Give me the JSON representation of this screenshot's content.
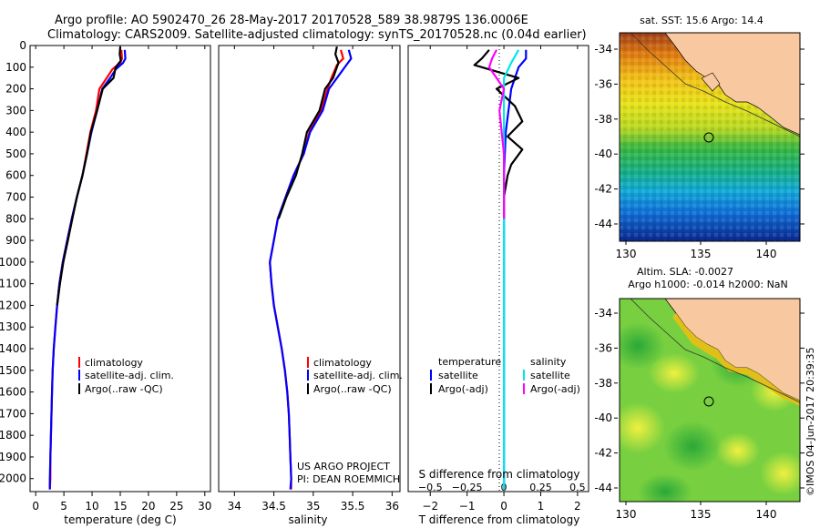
{
  "header": {
    "line1": "Argo profile: AO 5902470_26 28-May-2017 20170528_589 38.9879S 136.0006E",
    "line2": "Climatology: CARS2009. Satellite-adjusted climatology: synTS_20170528.nc (0.04d earlier)"
  },
  "colors": {
    "climatology": "#ff0000",
    "satellite": "#0000ff",
    "argo": "#000000",
    "satellite_salinity": "#00e5ee",
    "argo_salinity": "#ff00ff",
    "land": "#f8c8a0"
  },
  "chart_data": [
    {
      "type": "line",
      "name": "temperature-profile",
      "xlabel": "temperature (deg C)",
      "ylabel": "",
      "xlim": [
        -1,
        31
      ],
      "ylim": [
        2060,
        0
      ],
      "xticks": [
        0,
        5,
        10,
        15,
        20,
        25,
        30
      ],
      "yticks": [
        0,
        100,
        200,
        300,
        400,
        500,
        600,
        700,
        800,
        900,
        1000,
        1100,
        1200,
        1300,
        1400,
        1500,
        1600,
        1700,
        1800,
        1900,
        2000
      ],
      "legend": [
        "climatology",
        "satellite-adj. clim.",
        "Argo(..raw -QC)"
      ],
      "series": [
        {
          "name": "climatology",
          "color": "#ff0000",
          "points": [
            [
              15.2,
              20
            ],
            [
              15.3,
              60
            ],
            [
              15.0,
              80
            ],
            [
              13.6,
              110
            ],
            [
              12.6,
              150
            ],
            [
              11.3,
              200
            ],
            [
              10.7,
              300
            ],
            [
              9.7,
              400
            ],
            [
              9.0,
              500
            ],
            [
              8.3,
              600
            ],
            [
              7.3,
              700
            ],
            [
              6.4,
              800
            ],
            [
              5.6,
              900
            ],
            [
              4.8,
              1000
            ],
            [
              4.2,
              1100
            ],
            [
              3.8,
              1200
            ],
            [
              3.5,
              1300
            ],
            [
              3.2,
              1400
            ],
            [
              3.0,
              1500
            ],
            [
              2.9,
              1600
            ],
            [
              2.8,
              1700
            ],
            [
              2.7,
              1800
            ],
            [
              2.6,
              1900
            ],
            [
              2.6,
              2000
            ],
            [
              2.5,
              2050
            ]
          ]
        },
        {
          "name": "satellite-adj. clim.",
          "color": "#0000ff",
          "points": [
            [
              15.8,
              20
            ],
            [
              15.9,
              60
            ],
            [
              15.5,
              80
            ],
            [
              14.2,
              110
            ],
            [
              13.2,
              150
            ],
            [
              11.8,
              200
            ],
            [
              10.9,
              300
            ],
            [
              9.9,
              400
            ],
            [
              9.1,
              500
            ],
            [
              8.3,
              600
            ],
            [
              7.3,
              700
            ],
            [
              6.4,
              800
            ],
            [
              5.6,
              900
            ],
            [
              4.8,
              1000
            ],
            [
              4.2,
              1100
            ],
            [
              3.8,
              1200
            ],
            [
              3.5,
              1300
            ],
            [
              3.2,
              1400
            ],
            [
              3.0,
              1500
            ],
            [
              2.9,
              1600
            ],
            [
              2.8,
              1700
            ],
            [
              2.7,
              1800
            ],
            [
              2.6,
              1900
            ],
            [
              2.5,
              2000
            ],
            [
              2.5,
              2050
            ]
          ]
        },
        {
          "name": "Argo(..raw -QC)",
          "color": "#000000",
          "points": [
            [
              15.0,
              5
            ],
            [
              14.9,
              40
            ],
            [
              15.1,
              70
            ],
            [
              14.2,
              100
            ],
            [
              13.8,
              150
            ],
            [
              11.9,
              200
            ],
            [
              10.9,
              300
            ],
            [
              9.8,
              400
            ],
            [
              9.1,
              500
            ],
            [
              8.3,
              600
            ],
            [
              7.3,
              700
            ],
            [
              6.5,
              800
            ],
            [
              5.7,
              900
            ],
            [
              4.9,
              1000
            ],
            [
              4.3,
              1100
            ],
            [
              3.8,
              1200
            ]
          ]
        }
      ],
      "footer": []
    },
    {
      "type": "line",
      "name": "salinity-profile",
      "xlabel": "salinity",
      "ylabel": "",
      "xlim": [
        33.8,
        36.1
      ],
      "ylim": [
        2060,
        0
      ],
      "xticks": [
        34,
        34.5,
        35,
        35.5,
        36
      ],
      "legend": [
        "climatology",
        "satellite-adj. clim.",
        "Argo(..raw -QC)"
      ],
      "series": [
        {
          "name": "climatology",
          "color": "#ff0000",
          "points": [
            [
              35.35,
              20
            ],
            [
              35.38,
              60
            ],
            [
              35.3,
              90
            ],
            [
              35.23,
              150
            ],
            [
              35.18,
              200
            ],
            [
              35.1,
              300
            ],
            [
              34.95,
              400
            ],
            [
              34.88,
              500
            ],
            [
              34.75,
              600
            ],
            [
              34.65,
              700
            ],
            [
              34.55,
              800
            ],
            [
              34.5,
              900
            ],
            [
              34.45,
              1000
            ],
            [
              34.47,
              1100
            ],
            [
              34.5,
              1200
            ],
            [
              34.55,
              1300
            ],
            [
              34.6,
              1400
            ],
            [
              34.64,
              1500
            ],
            [
              34.67,
              1600
            ],
            [
              34.69,
              1700
            ],
            [
              34.7,
              1800
            ],
            [
              34.71,
              1900
            ],
            [
              34.72,
              2000
            ],
            [
              34.72,
              2050
            ]
          ]
        },
        {
          "name": "satellite-adj. clim.",
          "color": "#0000ff",
          "points": [
            [
              35.45,
              20
            ],
            [
              35.48,
              60
            ],
            [
              35.42,
              90
            ],
            [
              35.3,
              150
            ],
            [
              35.2,
              200
            ],
            [
              35.12,
              300
            ],
            [
              34.96,
              400
            ],
            [
              34.88,
              500
            ],
            [
              34.75,
              600
            ],
            [
              34.65,
              700
            ],
            [
              34.55,
              800
            ],
            [
              34.5,
              900
            ],
            [
              34.45,
              1000
            ],
            [
              34.47,
              1100
            ],
            [
              34.5,
              1200
            ],
            [
              34.55,
              1300
            ],
            [
              34.6,
              1400
            ],
            [
              34.64,
              1500
            ],
            [
              34.67,
              1600
            ],
            [
              34.69,
              1700
            ],
            [
              34.7,
              1800
            ],
            [
              34.71,
              1900
            ],
            [
              34.72,
              2000
            ],
            [
              34.71,
              2050
            ]
          ]
        },
        {
          "name": "Argo(..raw -QC)",
          "color": "#000000",
          "points": [
            [
              35.3,
              5
            ],
            [
              35.28,
              40
            ],
            [
              35.32,
              80
            ],
            [
              35.25,
              150
            ],
            [
              35.15,
              200
            ],
            [
              35.08,
              300
            ],
            [
              34.92,
              400
            ],
            [
              34.86,
              500
            ],
            [
              34.78,
              600
            ],
            [
              34.66,
              700
            ],
            [
              34.56,
              800
            ]
          ]
        }
      ],
      "footer": [
        "US ARGO PROJECT",
        "PI: DEAN ROEMMICH"
      ]
    },
    {
      "type": "line",
      "name": "difference-profile",
      "xlabel": "T difference from climatology",
      "x2label": "S difference from climatology",
      "xlim": [
        -2.6,
        2.3
      ],
      "ylim": [
        2060,
        0
      ],
      "xticks": [
        -2,
        -1,
        0,
        1,
        2
      ],
      "xticklabels": [
        "−2",
        "−1",
        "0",
        "1",
        "2"
      ],
      "x2ticks": [
        -0.5,
        -0.25,
        0,
        0.25,
        0.5
      ],
      "x2ticklabels": [
        "−0.5",
        "−0.25",
        "0",
        "0.25",
        "0.5"
      ],
      "x2lim": [
        -0.65,
        0.575
      ],
      "legend_temperature_title": "temperature",
      "legend_salinity_title": "salinity",
      "legend_temperature": [
        "satellite",
        "Argo(-adj)"
      ],
      "legend_salinity": [
        "satellite",
        "Argo(-adj)"
      ],
      "series": [
        {
          "name": "satellite",
          "axis": "T",
          "color": "#0000ff",
          "points": [
            [
              0.6,
              20
            ],
            [
              0.6,
              60
            ],
            [
              0.4,
              100
            ],
            [
              0.2,
              200
            ],
            [
              0.05,
              400
            ],
            [
              0.0,
              600
            ],
            [
              0.0,
              1000
            ],
            [
              0.0,
              1500
            ],
            [
              0.0,
              2050
            ]
          ]
        },
        {
          "name": "Argo(-adj)",
          "axis": "T",
          "color": "#000000",
          "points": [
            [
              -0.4,
              20
            ],
            [
              -0.6,
              60
            ],
            [
              -0.8,
              90
            ],
            [
              0.4,
              150
            ],
            [
              -0.2,
              200
            ],
            [
              0.3,
              280
            ],
            [
              0.5,
              350
            ],
            [
              0.1,
              420
            ],
            [
              0.5,
              480
            ],
            [
              0.2,
              550
            ],
            [
              0.1,
              600
            ],
            [
              0.0,
              700
            ],
            [
              0.0,
              800
            ]
          ]
        },
        {
          "name": "satellite",
          "axis": "S",
          "color": "#00e5ee",
          "points": [
            [
              0.1,
              20
            ],
            [
              0.05,
              80
            ],
            [
              0.0,
              150
            ],
            [
              0.0,
              300
            ],
            [
              0.0,
              600
            ],
            [
              0.0,
              1000
            ],
            [
              0.0,
              2050
            ]
          ]
        },
        {
          "name": "Argo(-adj)",
          "axis": "S",
          "color": "#ff00ff",
          "points": [
            [
              -0.05,
              20
            ],
            [
              -0.08,
              60
            ],
            [
              -0.1,
              100
            ],
            [
              0.0,
              200
            ],
            [
              -0.03,
              300
            ],
            [
              0.0,
              500
            ],
            [
              0.0,
              800
            ]
          ]
        }
      ]
    }
  ],
  "maps": {
    "sst": {
      "title": "sat. SST: 15.6 Argo: 14.4",
      "yticks": [
        "-34",
        "-36",
        "-38",
        "-40",
        "-42",
        "-44"
      ],
      "xticks": [
        "130",
        "135",
        "140"
      ]
    },
    "sla": {
      "title1": "Altim. SLA: -0.0027",
      "title2": "Argo h1000: -0.014 h2000: NaN",
      "yticks": [
        "-34",
        "-36",
        "-38",
        "-40",
        "-42",
        "-44"
      ],
      "xticks": [
        "130",
        "135",
        "140"
      ]
    },
    "stamp": "©IMOS 04-Jun-2017 20:39:35"
  }
}
